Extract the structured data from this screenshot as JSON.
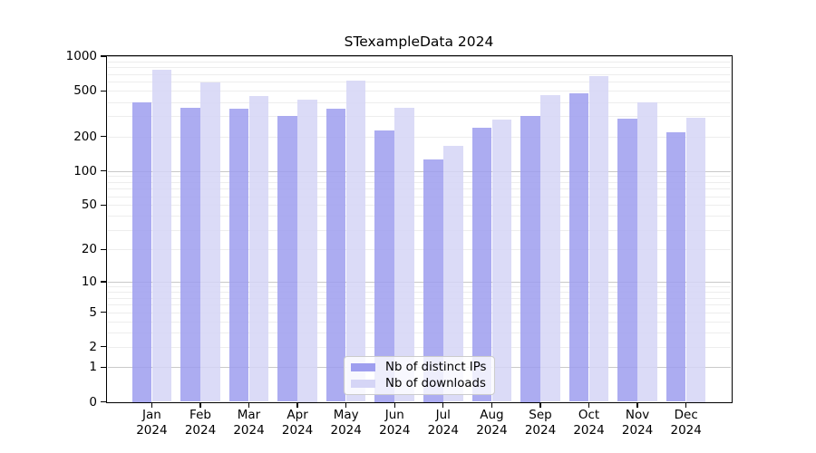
{
  "title": "STexampleData 2024",
  "chart_data": {
    "type": "bar",
    "title": "STexampleData 2024",
    "categories": [
      "Jan",
      "Feb",
      "Mar",
      "Apr",
      "May",
      "Jun",
      "Jul",
      "Aug",
      "Sep",
      "Oct",
      "Nov",
      "Dec"
    ],
    "year_label": "2024",
    "series": [
      {
        "name": "Nb of distinct IPs",
        "color": "#9e9eef",
        "values": [
          400,
          358,
          350,
          300,
          352,
          228,
          126,
          240,
          302,
          478,
          288,
          219
        ]
      },
      {
        "name": "Nb of downloads",
        "color": "#d5d5f6",
        "values": [
          760,
          592,
          452,
          419,
          615,
          355,
          165,
          282,
          460,
          670,
          395,
          291
        ]
      }
    ],
    "yscale": "log1p",
    "ylim": [
      0,
      1000
    ],
    "yticks": [
      0,
      1,
      2,
      5,
      10,
      20,
      50,
      100,
      200,
      500,
      1000
    ],
    "grid": true,
    "legend_position": "lower center"
  },
  "colors": {
    "background": "#ffffff",
    "axis": "#000000",
    "grid_major": "#c9c9c9",
    "grid_minor": "#ededed",
    "bar_distinct_ips": "#9e9eef",
    "bar_downloads": "#d5d5f6"
  }
}
